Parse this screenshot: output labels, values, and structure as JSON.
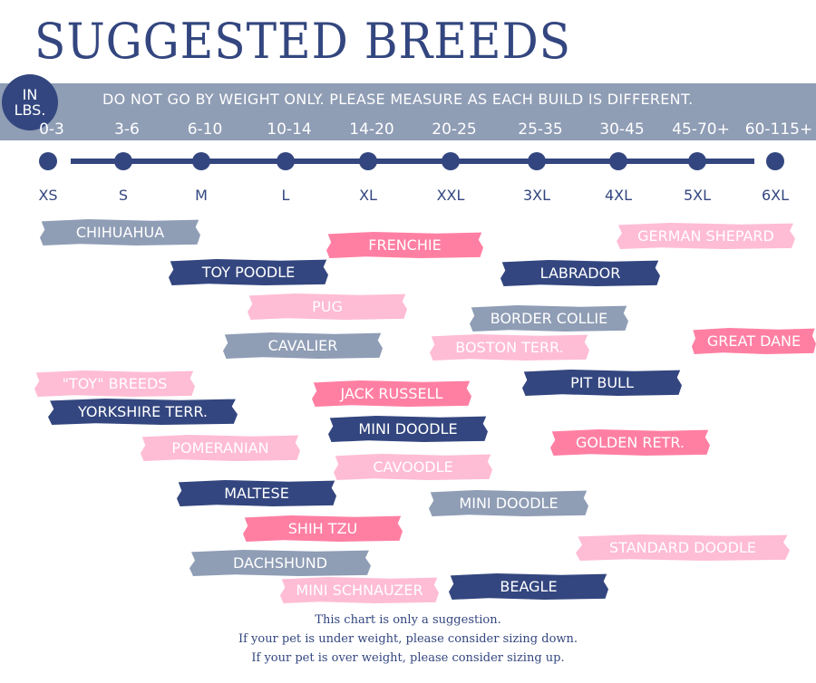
{
  "title": "SUGGESTED BREEDS",
  "unit_badge": "IN\nLBS.",
  "note": "DO NOT GO BY WEIGHT ONLY. PLEASE MEASURE AS EACH BUILD IS DIFFERENT.",
  "ranges": [
    "0-3",
    "3-6",
    "6-10",
    "10-14",
    "14-20",
    "20-25",
    "25-35",
    "30-45",
    "45-70+",
    "60-115+"
  ],
  "sizes": [
    "XS",
    "S",
    "M",
    "L",
    "XL",
    "XXL",
    "3XL",
    "4XL",
    "5XL",
    "6XL"
  ],
  "colors": {
    "navy": "#33467f",
    "gray": "#8f9db5",
    "pink": "#ff7fa3",
    "light_pink": "#ffbcd5"
  },
  "breeds": [
    {
      "label": "CHIHUAHUA",
      "color": "gray"
    },
    {
      "label": "FRENCHIE",
      "color": "pink"
    },
    {
      "label": "GERMAN SHEPARD",
      "color": "lpink"
    },
    {
      "label": "TOY POODLE",
      "color": "navy"
    },
    {
      "label": "LABRADOR",
      "color": "navy"
    },
    {
      "label": "PUG",
      "color": "lpink"
    },
    {
      "label": "BORDER COLLIE",
      "color": "gray"
    },
    {
      "label": "CAVALIER",
      "color": "gray"
    },
    {
      "label": "BOSTON TERR.",
      "color": "lpink"
    },
    {
      "label": "GREAT DANE",
      "color": "pink"
    },
    {
      "label": "\"TOY\" BREEDS",
      "color": "lpink"
    },
    {
      "label": "JACK RUSSELL",
      "color": "pink"
    },
    {
      "label": "PIT BULL",
      "color": "navy"
    },
    {
      "label": "YORKSHIRE TERR.",
      "color": "navy"
    },
    {
      "label": "MINI DOODLE",
      "color": "navy"
    },
    {
      "label": "POMERANIAN",
      "color": "lpink"
    },
    {
      "label": "GOLDEN RETR.",
      "color": "pink"
    },
    {
      "label": "CAVOODLE",
      "color": "lpink"
    },
    {
      "label": "MALTESE",
      "color": "navy"
    },
    {
      "label": "MINI DOODLE",
      "color": "gray"
    },
    {
      "label": "SHIH TZU",
      "color": "pink"
    },
    {
      "label": "STANDARD DOODLE",
      "color": "lpink"
    },
    {
      "label": "DACHSHUND",
      "color": "gray"
    },
    {
      "label": "MINI SCHNAUZER",
      "color": "lpink"
    },
    {
      "label": "BEAGLE",
      "color": "navy"
    }
  ],
  "footer": [
    "This chart is only a suggestion.",
    "If your pet is under weight, please consider sizing down.",
    "If your pet is over weight, please consider sizing up."
  ]
}
